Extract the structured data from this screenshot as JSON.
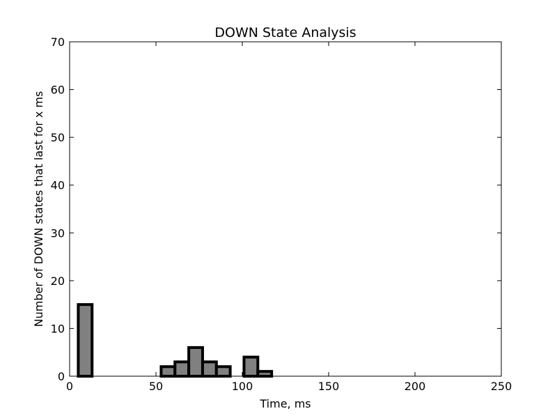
{
  "chart_data": {
    "type": "bar",
    "title": "DOWN State Analysis",
    "xlabel": "Time, ms",
    "ylabel": "Number of DOWN states that last for x ms",
    "xlim": [
      0,
      250
    ],
    "ylim": [
      0,
      70
    ],
    "xticks": [
      0,
      50,
      100,
      150,
      200,
      250
    ],
    "yticks": [
      0,
      10,
      20,
      30,
      40,
      50,
      60,
      70
    ],
    "bin_width": 8,
    "bins": [
      {
        "x": 5,
        "value": 15
      },
      {
        "x": 13,
        "value": 0
      },
      {
        "x": 21,
        "value": 0
      },
      {
        "x": 29,
        "value": 0
      },
      {
        "x": 37,
        "value": 0
      },
      {
        "x": 45,
        "value": 0
      },
      {
        "x": 53,
        "value": 2
      },
      {
        "x": 61,
        "value": 3
      },
      {
        "x": 69,
        "value": 6
      },
      {
        "x": 77,
        "value": 3
      },
      {
        "x": 85,
        "value": 2
      },
      {
        "x": 93,
        "value": 0
      },
      {
        "x": 101,
        "value": 4
      },
      {
        "x": 109,
        "value": 1
      },
      {
        "x": 117,
        "value": 0
      },
      {
        "x": 125,
        "value": 0
      },
      {
        "x": 133,
        "value": 0
      },
      {
        "x": 141,
        "value": 0
      },
      {
        "x": 149,
        "value": 0
      },
      {
        "x": 157,
        "value": 0
      },
      {
        "x": 165,
        "value": 0
      },
      {
        "x": 173,
        "value": 0
      },
      {
        "x": 181,
        "value": 0
      },
      {
        "x": 189,
        "value": 0
      },
      {
        "x": 197,
        "value": 0
      },
      {
        "x": 205,
        "value": 0
      },
      {
        "x": 213,
        "value": 0
      },
      {
        "x": 221,
        "value": 0
      },
      {
        "x": 229,
        "value": 0
      },
      {
        "x": 237,
        "value": 0
      },
      {
        "x": 245,
        "value": 0
      }
    ],
    "bar_fill": "#808080",
    "bar_edge": "#000000",
    "grid": false,
    "legend": "none"
  }
}
